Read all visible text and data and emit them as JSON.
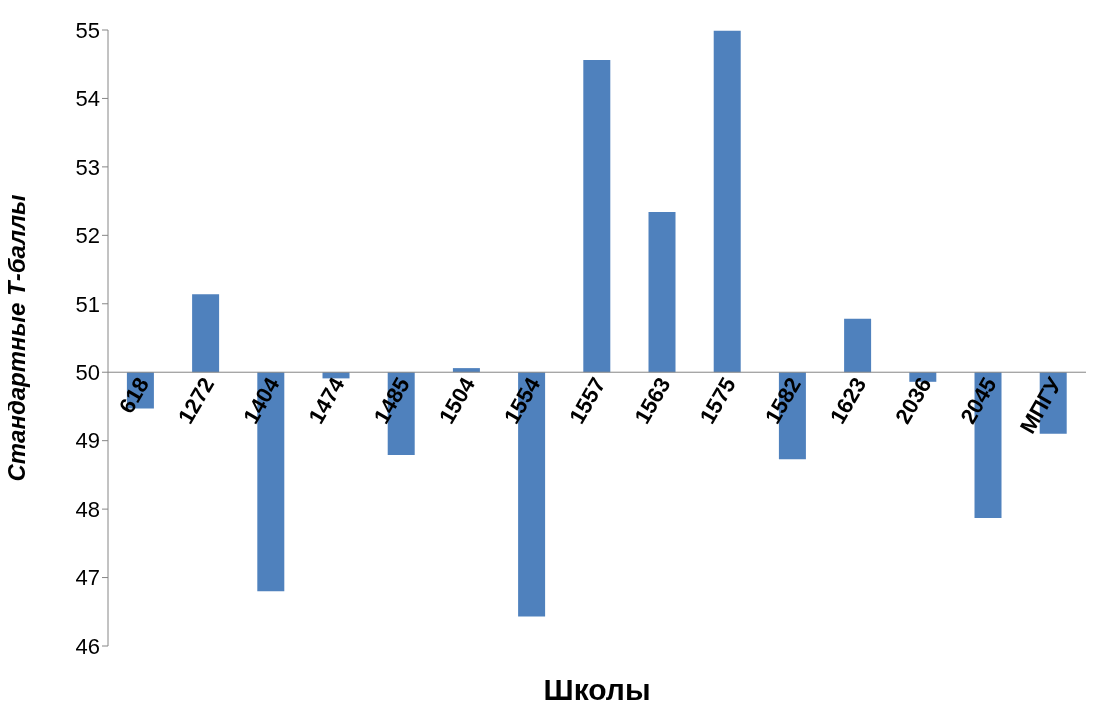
{
  "chart_data": {
    "type": "bar",
    "xlabel": "Школы",
    "ylabel": "Стандартные Т-баллы",
    "categories": [
      "618",
      "1272",
      "1404",
      "1474",
      "1485",
      "1504",
      "1554",
      "1557",
      "1563",
      "1575",
      "1582",
      "1623",
      "2036",
      "2045",
      "МПГУ"
    ],
    "base": [
      50,
      50,
      50,
      50,
      50,
      50,
      50,
      50,
      50,
      50,
      50,
      50,
      50,
      50,
      50
    ],
    "values": [
      -0.53,
      1.14,
      -3.2,
      -0.09,
      -1.21,
      0.06,
      -3.57,
      4.56,
      2.34,
      4.99,
      -1.27,
      0.78,
      -0.14,
      -2.13,
      -0.9
    ],
    "color": "#4f81bd",
    "ylim": [
      46,
      55
    ],
    "yticks": [
      46,
      47,
      48,
      49,
      50,
      51,
      52,
      53,
      54,
      55
    ],
    "grid": false,
    "legend": false
  }
}
